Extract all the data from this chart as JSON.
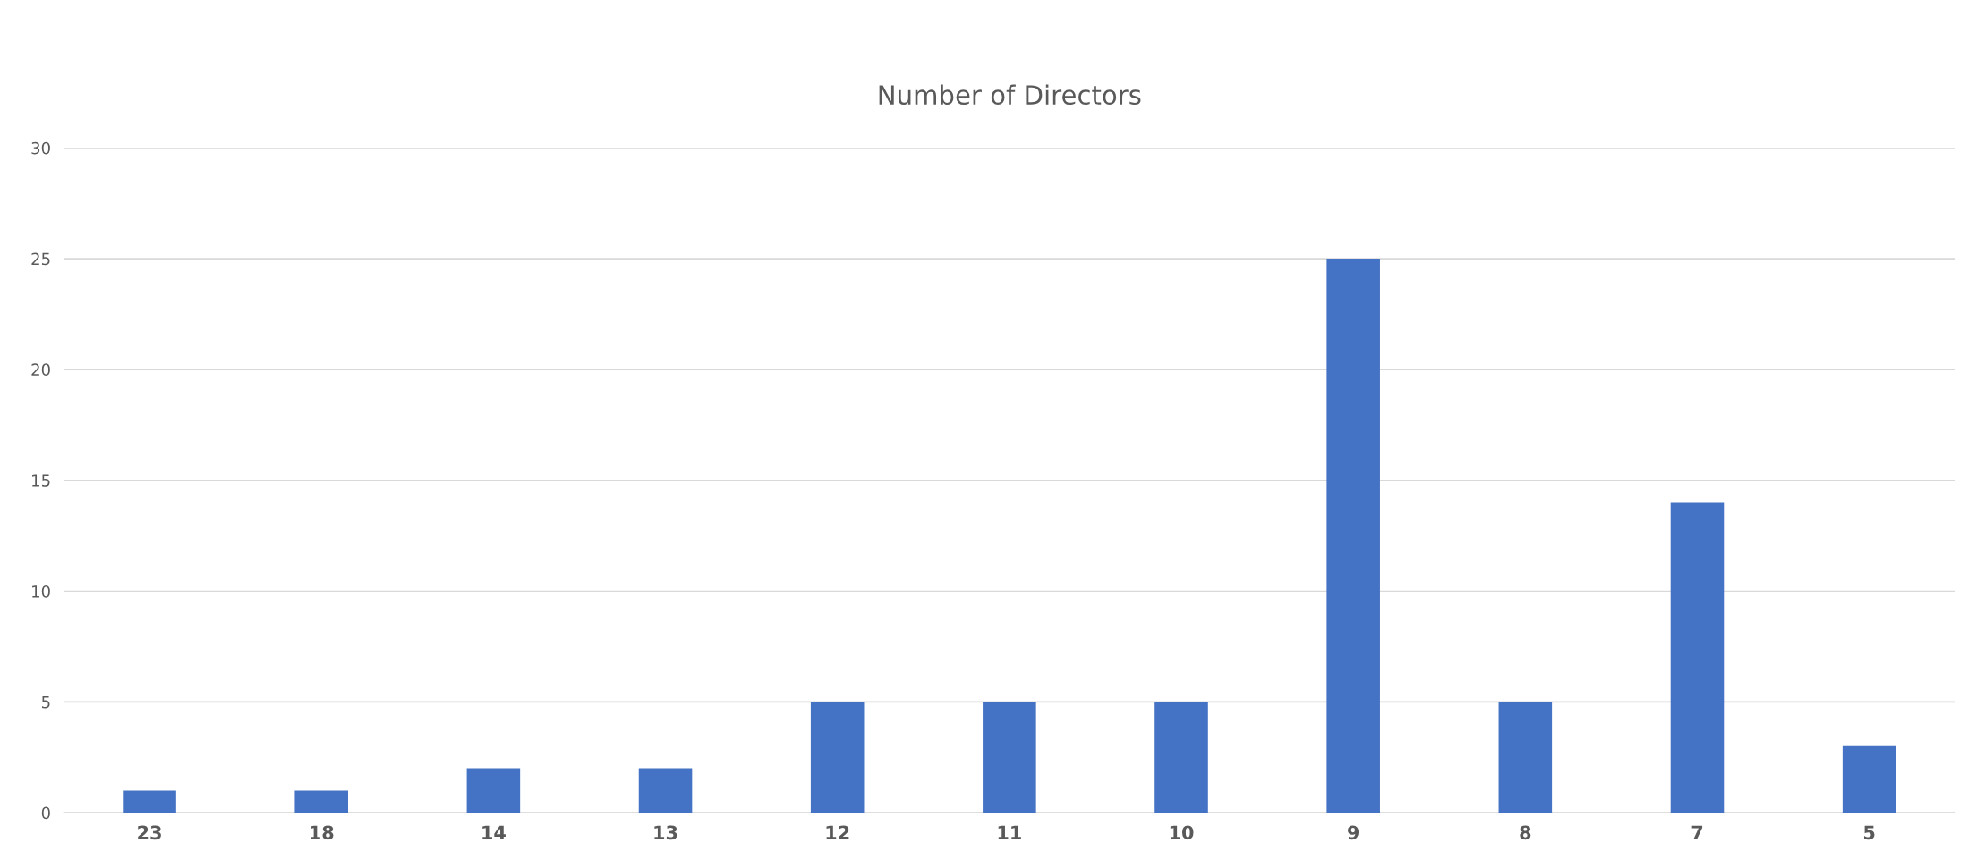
{
  "chart_data": {
    "type": "bar",
    "title": "Number of Directors",
    "categories": [
      "23",
      "18",
      "14",
      "13",
      "12",
      "11",
      "10",
      "9",
      "8",
      "7",
      "5"
    ],
    "values": [
      1,
      1,
      2,
      2,
      5,
      5,
      5,
      25,
      5,
      14,
      3
    ],
    "color": "#4472c4",
    "ylim": [
      0,
      30
    ],
    "yticks": [
      0,
      5,
      10,
      15,
      20,
      25,
      30
    ],
    "grid": "y"
  }
}
